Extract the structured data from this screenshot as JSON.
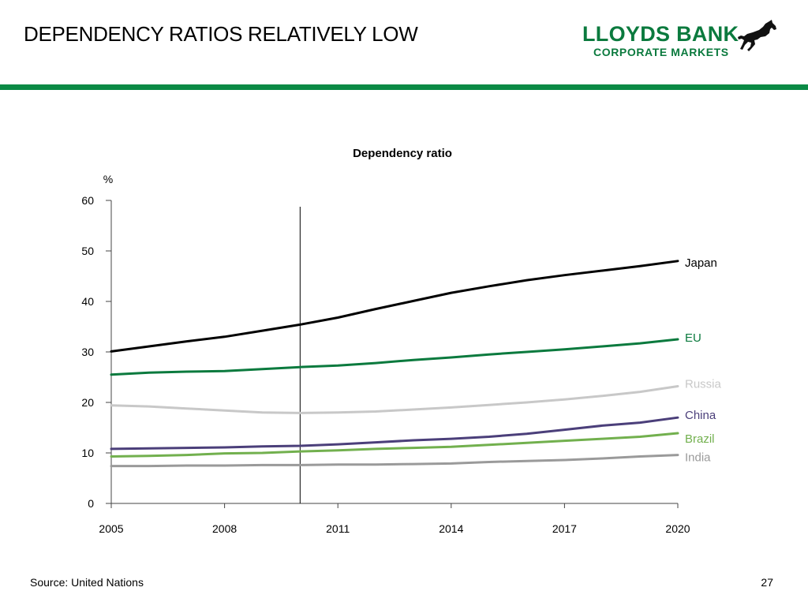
{
  "header": {
    "title": "DEPENDENCY RATIOS RELATIVELY LOW"
  },
  "logo": {
    "line1": "LLOYDS BANK",
    "line2": "CORPORATE MARKETS",
    "icon": "black-horse-icon"
  },
  "colors": {
    "brand": "#0b7a3e",
    "rule": "#0a8a45"
  },
  "chart_data": {
    "type": "line",
    "title": "Dependency ratio",
    "ylabel": "%",
    "xlabel": "",
    "xlim": [
      2005,
      2020
    ],
    "ylim": [
      0,
      60
    ],
    "x_ticks": [
      "2005",
      "2008",
      "2011",
      "2014",
      "2017",
      "2020"
    ],
    "y_ticks": [
      "0",
      "10",
      "20",
      "30",
      "40",
      "50",
      "60"
    ],
    "grid": false,
    "legend": "inline-right",
    "vertical_marker_x": 2010,
    "x": [
      2005,
      2006,
      2007,
      2008,
      2009,
      2010,
      2011,
      2012,
      2013,
      2014,
      2015,
      2016,
      2017,
      2018,
      2019,
      2020
    ],
    "series": [
      {
        "name": "Japan",
        "color": "#000000",
        "values": [
          30.1,
          31.1,
          32.1,
          33.0,
          34.2,
          35.4,
          36.8,
          38.5,
          40.1,
          41.7,
          43.0,
          44.2,
          45.2,
          46.1,
          47.0,
          48.0
        ]
      },
      {
        "name": "EU",
        "color": "#0b7a3e",
        "values": [
          25.5,
          25.9,
          26.1,
          26.2,
          26.6,
          27.0,
          27.3,
          27.8,
          28.4,
          28.9,
          29.5,
          30.0,
          30.5,
          31.1,
          31.7,
          32.5
        ]
      },
      {
        "name": "Russia",
        "color": "#c8c8c8",
        "values": [
          19.4,
          19.2,
          18.8,
          18.4,
          18.0,
          17.9,
          18.0,
          18.2,
          18.6,
          19.0,
          19.5,
          20.0,
          20.6,
          21.3,
          22.1,
          23.2
        ]
      },
      {
        "name": "China",
        "color": "#4b3f7a",
        "values": [
          10.8,
          10.9,
          11.0,
          11.1,
          11.3,
          11.4,
          11.7,
          12.1,
          12.5,
          12.8,
          13.2,
          13.8,
          14.6,
          15.4,
          16.0,
          17.0
        ]
      },
      {
        "name": "Brazil",
        "color": "#72b04e",
        "values": [
          9.3,
          9.4,
          9.6,
          9.9,
          10.0,
          10.3,
          10.5,
          10.8,
          11.0,
          11.2,
          11.6,
          12.0,
          12.4,
          12.8,
          13.2,
          13.9
        ]
      },
      {
        "name": "India",
        "color": "#9a9a9a",
        "values": [
          7.4,
          7.4,
          7.5,
          7.5,
          7.6,
          7.6,
          7.7,
          7.7,
          7.8,
          7.9,
          8.2,
          8.4,
          8.6,
          8.9,
          9.3,
          9.6
        ]
      }
    ]
  },
  "footer": {
    "source": "Source: United Nations",
    "page_number": "27"
  }
}
